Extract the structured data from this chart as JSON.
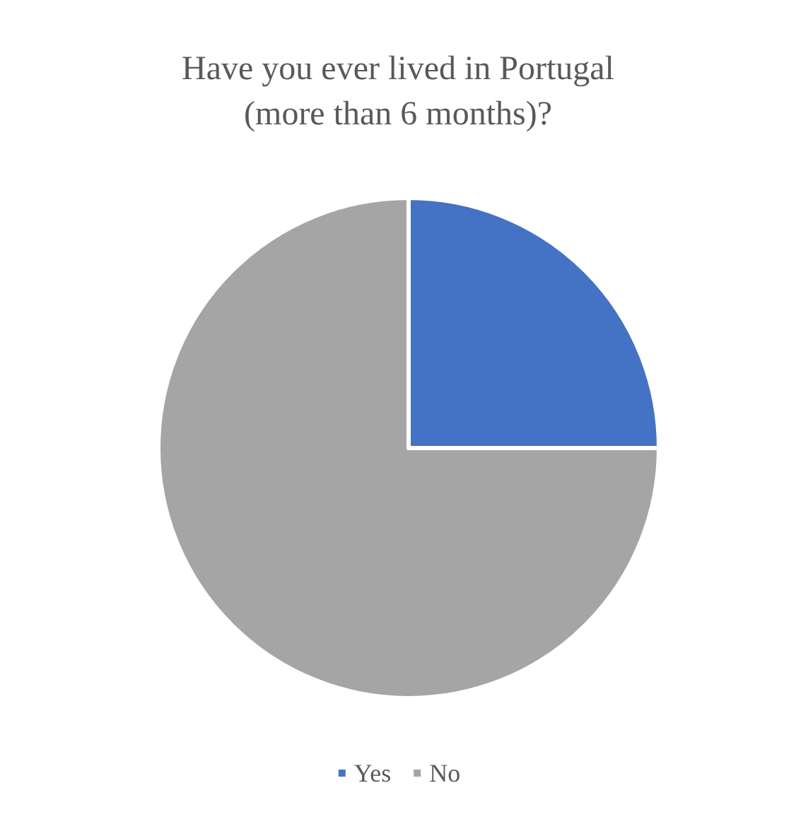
{
  "chart_data": {
    "type": "pie",
    "title": "Have you ever lived in Portugal\n(more than 6 months)?",
    "categories": [
      "Yes",
      "No"
    ],
    "values": [
      25,
      75
    ],
    "colors": [
      "#4472c4",
      "#a5a5a5"
    ],
    "legend": "bottom"
  }
}
